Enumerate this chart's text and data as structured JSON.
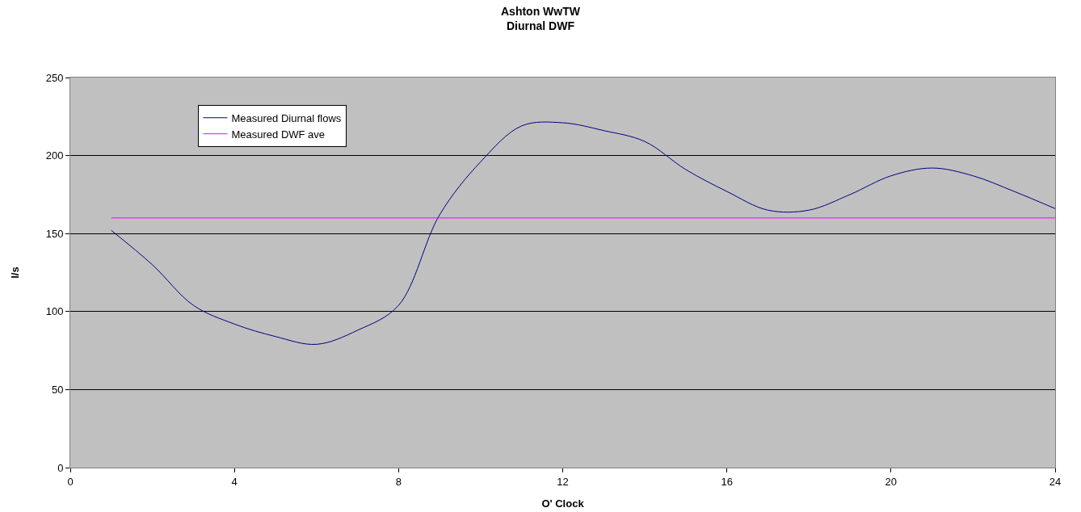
{
  "chart_data": {
    "type": "line",
    "title": "Ashton WwTW\nDiurnal DWF",
    "xlabel": "O' Clock",
    "ylabel": "l/s",
    "x": [
      1,
      2,
      3,
      4,
      5,
      6,
      7,
      8,
      9,
      10,
      11,
      12,
      13,
      14,
      15,
      16,
      17,
      18,
      19,
      20,
      21,
      22,
      23,
      24
    ],
    "series": [
      {
        "name": "Measured Diurnal flows",
        "color": "#000080",
        "values": [
          152,
          130,
          104,
          92,
          84,
          79,
          88,
          104,
          162,
          196,
          219,
          221,
          216,
          209,
          191,
          177,
          165,
          165,
          175,
          187,
          192,
          187,
          177,
          166
        ]
      },
      {
        "name": "Measured DWF ave",
        "color": "#ff00ff",
        "x": [
          1,
          24
        ],
        "values": [
          160,
          160
        ]
      }
    ],
    "xlim": [
      0,
      24
    ],
    "xticks": [
      0,
      4,
      8,
      12,
      16,
      20,
      24
    ],
    "ylim": [
      0,
      250
    ],
    "yticks": [
      0,
      50,
      100,
      150,
      200,
      250
    ],
    "grid": "y",
    "legend": "top left",
    "marker": "none",
    "line_style": "solid"
  }
}
